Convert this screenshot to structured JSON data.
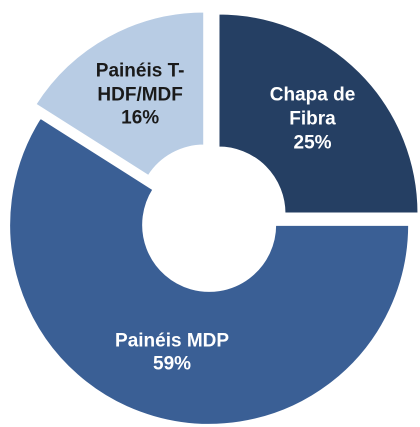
{
  "chart_data": {
    "type": "donut",
    "categories": [
      "Chapa de Fibra",
      "Painéis MDP",
      "Painéis T-HDF/MDF"
    ],
    "values": [
      25,
      59,
      16
    ],
    "value_labels": [
      "25%",
      "59%",
      "16%"
    ],
    "colors": [
      "#253f63",
      "#3a5f95",
      "#b8cce4"
    ],
    "label_colors": [
      "#ffffff",
      "#ffffff",
      "#1a1a1a"
    ]
  }
}
